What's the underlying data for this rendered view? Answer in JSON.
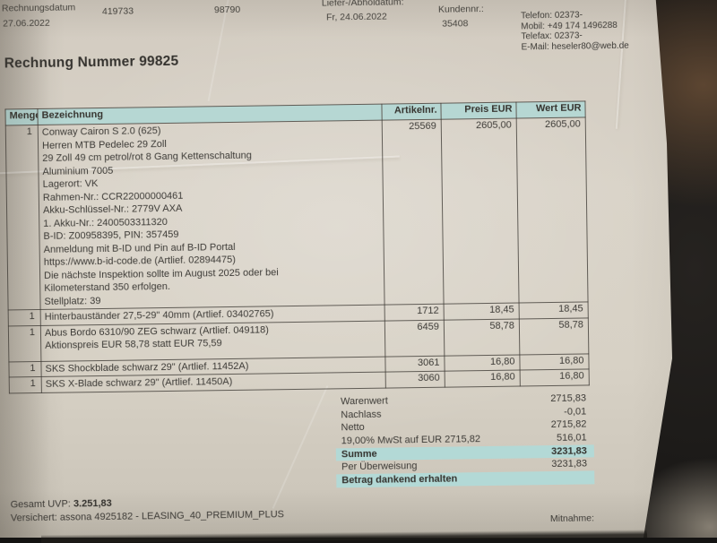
{
  "colors": {
    "paper": "#d7d0c5",
    "accent_teal_header": "#b6d7d3",
    "accent_teal_band": "#b3d9d6",
    "background": "#141312",
    "text": "#3c3a36"
  },
  "header": {
    "rechnungsdatum_label": "Rechnungsdatum",
    "rechnungsdatum_value": "27.06.2022",
    "vorgang_number": "419733",
    "beleg_number": "98790",
    "lieferdatum_label": "Liefer-/Abholdatum:",
    "lieferdatum_value": "Fr, 24.06.2022",
    "kundennr_label": "Kundennr.:",
    "kundennr_value": "35408",
    "contact_lines": [
      "Telefon: 02373-",
      "Mobil: +49 174 1496288",
      "Telefax: 02373-",
      "E-Mail: heseler80@web.de"
    ]
  },
  "title": "Rechnung Nummer 99825",
  "table": {
    "columns": [
      "Menge",
      "Bezeichnung",
      "Artikelnr.",
      "Preis EUR",
      "Wert EUR"
    ],
    "rows": [
      {
        "menge": "1",
        "lines": [
          "Conway Cairon S 2.0 (625)",
          "Herren MTB Pedelec 29 Zoll",
          "29 Zoll 49 cm petrol/rot 8 Gang Kettenschaltung",
          "Aluminium 7005",
          "Lagerort: VK",
          "Rahmen-Nr.: CCR22000000461",
          "Akku-Schlüssel-Nr.: 2779V AXA",
          "1. Akku-Nr.: 2400503311320",
          "B-ID: Z00958395, PIN: 357459",
          "Anmeldung mit B-ID und Pin auf B-ID Portal",
          "https://www.b-id-code.de (Artlief. 02894475)",
          "Die nächste Inspektion sollte im August 2025 oder bei",
          "Kilometerstand 350 erfolgen.",
          "Stellplatz: 39"
        ],
        "artikelnr": "25569",
        "preis": "2605,00",
        "wert": "2605,00"
      },
      {
        "menge": "1",
        "lines": [
          "Hinterbauständer 27,5-29\" 40mm (Artlief. 03402765)"
        ],
        "artikelnr": "1712",
        "preis": "18,45",
        "wert": "18,45"
      },
      {
        "menge": "1",
        "lines": [
          "Abus Bordo 6310/90 ZEG schwarz (Artlief. 049118)",
          "Aktionspreis EUR 58,78 statt EUR 75,59",
          ""
        ],
        "artikelnr": "6459",
        "preis": "58,78",
        "wert": "58,78"
      },
      {
        "menge": "1",
        "lines": [
          "SKS Shockblade schwarz 29\" (Artlief. 11452A)"
        ],
        "artikelnr": "3061",
        "preis": "16,80",
        "wert": "16,80"
      },
      {
        "menge": "1",
        "lines": [
          "SKS X-Blade schwarz 29\" (Artlief. 11450A)"
        ],
        "artikelnr": "3060",
        "preis": "16,80",
        "wert": "16,80"
      }
    ]
  },
  "summary": {
    "rows": [
      {
        "label": "Warenwert",
        "value": "2715,83",
        "highlight": false,
        "bold": false
      },
      {
        "label": "Nachlass",
        "value": "-0,01",
        "highlight": false,
        "bold": false
      },
      {
        "label": "Netto",
        "value": "2715,82",
        "highlight": false,
        "bold": false
      },
      {
        "label": "19,00% MwSt auf EUR 2715,82",
        "value": "516,01",
        "highlight": false,
        "bold": false
      },
      {
        "label": "Summe",
        "value": "3231,83",
        "highlight": true,
        "bold": true
      },
      {
        "label": "Per Überweisung",
        "value": "3231,83",
        "highlight": false,
        "bold": false
      },
      {
        "label": "Betrag dankend erhalten",
        "value": "",
        "highlight": true,
        "bold": true
      }
    ]
  },
  "footer": {
    "gesamt_uvp_label": "Gesamt UVP:",
    "gesamt_uvp_value": "3.251,83",
    "versichert_line": "Versichert: assona 4925182 - LEASING_40_PREMIUM_PLUS",
    "mitnahme_label": "Mitnahme:"
  }
}
